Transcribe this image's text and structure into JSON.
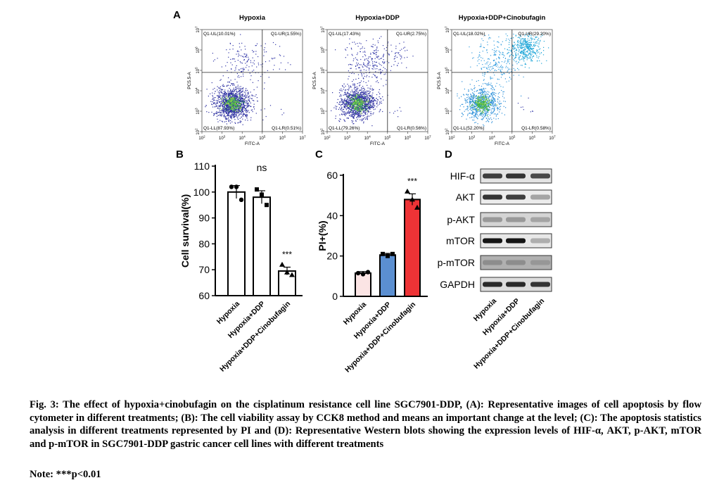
{
  "chart_data": [
    {
      "type": "scatter",
      "panel_label": "A",
      "titles": [
        "Hypoxia",
        "Hypoxia+DDP",
        "Hypoxia+DDP+Cinobufagin"
      ],
      "xlabel": "FITC-A",
      "ylabel": "PC5.5-A",
      "x_ticks": [
        "10^2",
        "10^3",
        "10^4",
        "10^5",
        "10^6",
        "10^7"
      ],
      "y_ticks": [
        "10^2",
        "10^3",
        "10^4",
        "10^5",
        "10^6",
        "10^7"
      ],
      "log_scale": true,
      "quadrants": [
        {
          "UL": "Q1-UL(10.01%)",
          "UR": "Q1-UR(1.55%)",
          "LL": "Q1-LL(87.93%)",
          "LR": "Q1-LR(0.51%)"
        },
        {
          "UL": "Q1-UL(17.43%)",
          "UR": "Q1-UR(2.75%)",
          "LL": "Q1-LL(79.26%)",
          "LR": "Q1-LR(0.56%)"
        },
        {
          "UL": "Q1-UL(18.02%)",
          "UR": "Q1-UR(29.20%)",
          "LL": "Q1-LL(52.20%)",
          "LR": "Q1-LR(0.58%)"
        }
      ]
    },
    {
      "type": "bar",
      "panel_label": "B",
      "categories": [
        "Hypoxia",
        "Hypoxia+DDP",
        "Hypoxia+DDP+Cinobufagin"
      ],
      "values": [
        100,
        98,
        69.5
      ],
      "errors": [
        2.5,
        2.5,
        1.5
      ],
      "points": [
        [
          102,
          102,
          97
        ],
        [
          101,
          99,
          95
        ],
        [
          72,
          69,
          68
        ]
      ],
      "significance": [
        "",
        "ns",
        "***"
      ],
      "ylabel": "Cell survival(%)",
      "ylim": [
        60,
        110
      ],
      "yticks": [
        60,
        70,
        80,
        90,
        100,
        110
      ],
      "colors": [
        "#ffffff",
        "#ffffff",
        "#ffffff"
      ]
    },
    {
      "type": "bar",
      "panel_label": "C",
      "categories": [
        "Hypoxia",
        "Hypoxia+DDP",
        "Hypoxia+DDP+Cinobufagin"
      ],
      "values": [
        11.5,
        20.5,
        48
      ],
      "errors": [
        0.8,
        0.8,
        2.8
      ],
      "points": [
        [
          11.5,
          11,
          12
        ],
        [
          21,
          20,
          21
        ],
        [
          52,
          48,
          44
        ]
      ],
      "significance": [
        "",
        "",
        "***"
      ],
      "ylabel": "PI+(%)",
      "ylim": [
        0,
        60
      ],
      "yticks": [
        0,
        20,
        40,
        60
      ],
      "colors": [
        "#fbe4e4",
        "#5b8fd1",
        "#ee3336"
      ]
    }
  ],
  "western_blot": {
    "panel_label": "D",
    "proteins": [
      "HIF-α",
      "AKT",
      "p-AKT",
      "mTOR",
      "p-mTOR",
      "GAPDH"
    ],
    "lanes": [
      "Hypoxia",
      "Hypoxia+DDP",
      "Hypoxia+DDP+Cinobufagin"
    ],
    "relative_intensity": [
      [
        0.8,
        0.85,
        0.75
      ],
      [
        0.85,
        0.8,
        0.3
      ],
      [
        0.35,
        0.35,
        0.3
      ],
      [
        1.0,
        1.0,
        0.25
      ],
      [
        0.4,
        0.4,
        0.35
      ],
      [
        0.9,
        0.9,
        0.85
      ]
    ]
  },
  "caption": "Fig. 3: The effect of hypoxia+cinobufagin on the cisplatinum resistance cell line SGC7901-DDP, (A): Representative images of cell apoptosis by flow cytometer in different treatments; (B): The cell viability assay by CCK8 method and means an important change at the level; (C): The apoptosis statistics analysis in different treatments represented by PI and (D): Representative Western blots showing the expression levels of HIF-α, AKT, p-AKT, mTOR and p-mTOR in SGC7901-DDP gastric cancer cell lines with different treatments",
  "note": "Note: ***p<0.01"
}
